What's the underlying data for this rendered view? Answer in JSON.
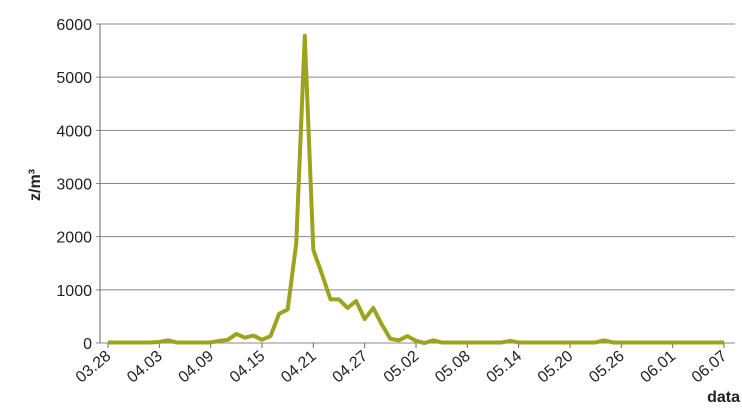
{
  "chart_data": {
    "type": "line",
    "y_label": "z/m³",
    "x_label": "data",
    "categories": [
      "03.28",
      null,
      null,
      null,
      null,
      null,
      "04.03",
      null,
      null,
      null,
      null,
      null,
      "04.09",
      null,
      null,
      null,
      null,
      null,
      "04.15",
      null,
      null,
      null,
      null,
      null,
      "04.21",
      null,
      null,
      null,
      null,
      null,
      "04.27",
      null,
      null,
      null,
      null,
      null,
      "05.02",
      null,
      null,
      null,
      null,
      null,
      "05.08",
      null,
      null,
      null,
      null,
      null,
      "05.14",
      null,
      null,
      null,
      null,
      null,
      "05.20",
      null,
      null,
      null,
      null,
      null,
      "05.26",
      null,
      null,
      null,
      null,
      null,
      "06.01",
      null,
      null,
      null,
      null,
      null,
      "06.07"
    ],
    "series": [
      {
        "name": "z/m³",
        "color": "#9ca31e",
        "values": [
          10,
          10,
          10,
          10,
          10,
          10,
          20,
          50,
          10,
          10,
          10,
          10,
          10,
          40,
          60,
          170,
          100,
          140,
          60,
          130,
          550,
          630,
          1870,
          5780,
          1750,
          1300,
          820,
          820,
          660,
          790,
          450,
          660,
          350,
          80,
          50,
          130,
          40,
          0,
          50,
          10,
          10,
          10,
          10,
          10,
          10,
          10,
          10,
          40,
          10,
          10,
          10,
          10,
          10,
          10,
          10,
          10,
          10,
          10,
          50,
          10,
          10,
          10,
          10,
          10,
          10,
          10,
          10,
          10,
          10,
          10,
          10,
          10,
          10
        ]
      }
    ],
    "ylim": [
      0,
      6000
    ],
    "yticks": [
      0,
      1000,
      2000,
      3000,
      4000,
      5000,
      6000
    ],
    "grid": true
  }
}
